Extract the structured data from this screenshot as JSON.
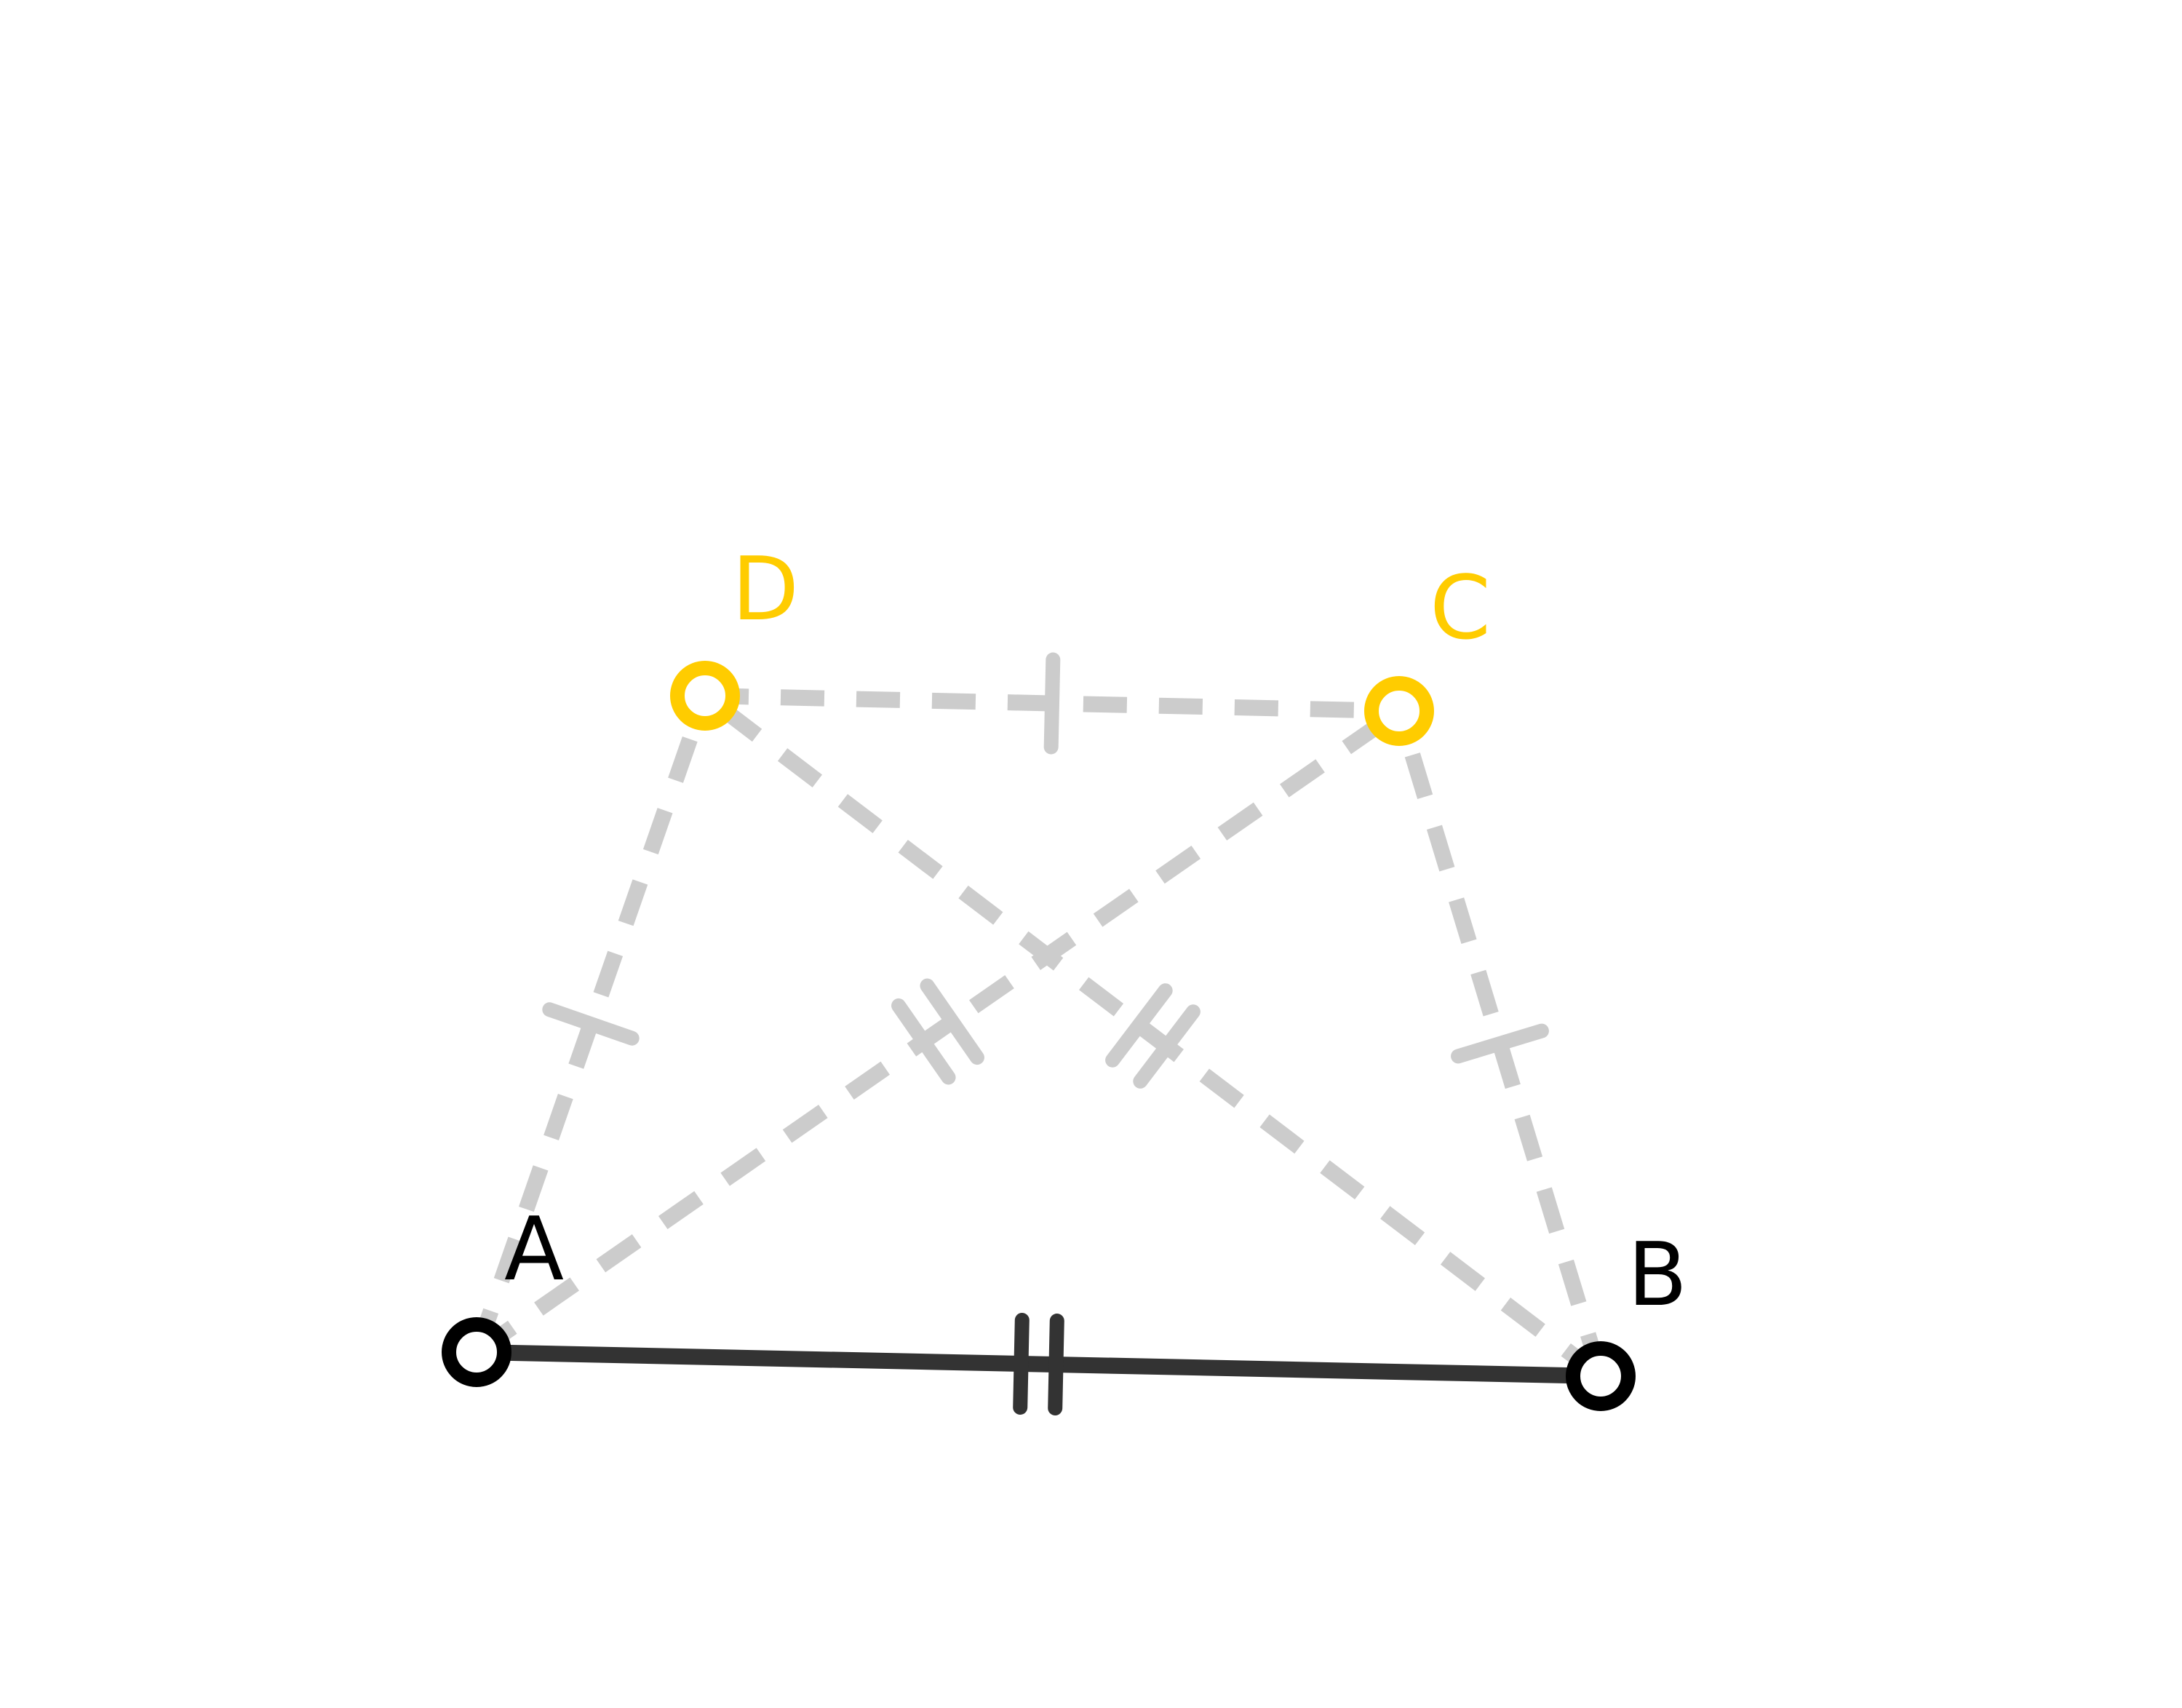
{
  "diagram": {
    "colors": {
      "background": "#ffffff",
      "construction": "#cccccc",
      "solid_segment": "#333333",
      "free_point": "#000000",
      "dependent_point": "#ffcc00",
      "point_fill": "#ffffff"
    },
    "points": [
      {
        "id": "A",
        "label": "A",
        "kind": "free"
      },
      {
        "id": "B",
        "label": "B",
        "kind": "free"
      },
      {
        "id": "C",
        "label": "C",
        "kind": "dependent"
      },
      {
        "id": "D",
        "label": "D",
        "kind": "dependent"
      }
    ],
    "segments": [
      {
        "id": "AB",
        "from": "A",
        "to": "B",
        "style": "solid",
        "tick_marks": 2
      },
      {
        "id": "DC",
        "from": "D",
        "to": "C",
        "style": "dashed",
        "tick_marks": 1
      },
      {
        "id": "AD",
        "from": "A",
        "to": "D",
        "style": "dashed",
        "tick_marks": 1
      },
      {
        "id": "BC",
        "from": "B",
        "to": "C",
        "style": "dashed",
        "tick_marks": 1
      },
      {
        "id": "AC",
        "from": "A",
        "to": "C",
        "style": "dashed",
        "tick_marks": 2
      },
      {
        "id": "BD",
        "from": "B",
        "to": "D",
        "style": "dashed",
        "tick_marks": 2
      }
    ]
  }
}
